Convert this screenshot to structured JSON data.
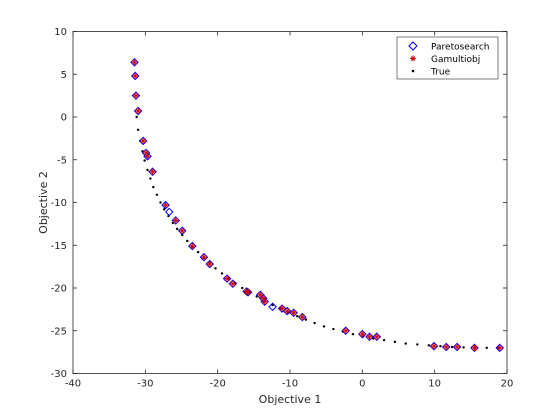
{
  "chart_data": {
    "type": "scatter",
    "title": "",
    "xlabel": "Objective 1",
    "ylabel": "Objective 2",
    "xlim": [
      -40,
      20
    ],
    "ylim": [
      -30,
      10
    ],
    "xticks": [
      "-40",
      "-30",
      "-20",
      "-10",
      "0",
      "10",
      "20"
    ],
    "yticks": [
      "-30",
      "-25",
      "-20",
      "-15",
      "-10",
      "-5",
      "0",
      "5",
      "10"
    ],
    "grid": false,
    "legend_position": "top-right",
    "series": [
      {
        "name": "Paretosearch",
        "marker": "diamond",
        "color": "#0000ff",
        "points": [
          [
            -31.5,
            6.4
          ],
          [
            -31.4,
            4.8
          ],
          [
            -31.3,
            2.5
          ],
          [
            -31.0,
            0.7
          ],
          [
            -30.3,
            -2.8
          ],
          [
            -29.9,
            -4.2
          ],
          [
            -29.7,
            -4.6
          ],
          [
            -29.0,
            -6.4
          ],
          [
            -27.2,
            -10.3
          ],
          [
            -26.7,
            -11.1
          ],
          [
            -25.8,
            -12.1
          ],
          [
            -24.9,
            -13.3
          ],
          [
            -23.5,
            -15.1
          ],
          [
            -21.9,
            -16.4
          ],
          [
            -21.1,
            -17.2
          ],
          [
            -18.7,
            -18.9
          ],
          [
            -17.9,
            -19.5
          ],
          [
            -16.0,
            -20.4
          ],
          [
            -15.8,
            -20.5
          ],
          [
            -14.1,
            -20.8
          ],
          [
            -13.7,
            -21.2
          ],
          [
            -13.5,
            -21.6
          ],
          [
            -12.4,
            -22.2
          ],
          [
            -11.1,
            -22.4
          ],
          [
            -10.4,
            -22.7
          ],
          [
            -9.5,
            -22.9
          ],
          [
            -8.3,
            -23.4
          ],
          [
            -2.3,
            -25.0
          ],
          [
            0.0,
            -25.4
          ],
          [
            1.0,
            -25.7
          ],
          [
            2.0,
            -25.7
          ],
          [
            9.9,
            -26.8
          ],
          [
            11.6,
            -26.9
          ],
          [
            13.1,
            -26.9
          ],
          [
            15.5,
            -27.0
          ],
          [
            19.0,
            -27.0
          ]
        ]
      },
      {
        "name": "Gamultiobj",
        "marker": "asterisk",
        "color": "#d00000",
        "points": [
          [
            -31.5,
            6.4
          ],
          [
            -31.4,
            4.8
          ],
          [
            -31.3,
            2.5
          ],
          [
            -31.0,
            0.7
          ],
          [
            -30.3,
            -2.8
          ],
          [
            -29.9,
            -4.2
          ],
          [
            -29.7,
            -4.6
          ],
          [
            -29.0,
            -6.4
          ],
          [
            -27.2,
            -10.3
          ],
          [
            -25.8,
            -12.1
          ],
          [
            -24.9,
            -13.3
          ],
          [
            -23.5,
            -15.1
          ],
          [
            -21.9,
            -16.4
          ],
          [
            -21.1,
            -17.2
          ],
          [
            -18.7,
            -18.9
          ],
          [
            -17.9,
            -19.5
          ],
          [
            -16.0,
            -20.4
          ],
          [
            -15.8,
            -20.5
          ],
          [
            -14.1,
            -20.8
          ],
          [
            -13.7,
            -21.2
          ],
          [
            -13.5,
            -21.6
          ],
          [
            -11.1,
            -22.4
          ],
          [
            -10.4,
            -22.7
          ],
          [
            -9.5,
            -22.9
          ],
          [
            -8.3,
            -23.4
          ],
          [
            -2.3,
            -25.0
          ],
          [
            0.0,
            -25.4
          ],
          [
            1.0,
            -25.7
          ],
          [
            2.0,
            -25.7
          ],
          [
            9.9,
            -26.8
          ],
          [
            11.6,
            -26.9
          ],
          [
            13.1,
            -26.9
          ],
          [
            15.5,
            -27.0
          ],
          [
            19.0,
            -27.0
          ]
        ]
      },
      {
        "name": "True",
        "marker": "dot",
        "color": "#000000",
        "points": [
          [
            -31.2,
            0.0
          ],
          [
            -31.0,
            -1.5
          ],
          [
            -30.7,
            -2.8
          ],
          [
            -30.4,
            -4.0
          ],
          [
            -30.1,
            -5.1
          ],
          [
            -29.7,
            -6.2
          ],
          [
            -29.3,
            -7.2
          ],
          [
            -28.9,
            -8.2
          ],
          [
            -28.4,
            -9.1
          ],
          [
            -27.9,
            -10.0
          ],
          [
            -27.4,
            -10.8
          ],
          [
            -26.8,
            -11.6
          ],
          [
            -26.2,
            -12.4
          ],
          [
            -25.6,
            -13.1
          ],
          [
            -24.9,
            -13.8
          ],
          [
            -24.2,
            -14.5
          ],
          [
            -23.5,
            -15.2
          ],
          [
            -22.7,
            -15.8
          ],
          [
            -21.9,
            -16.5
          ],
          [
            -21.1,
            -17.1
          ],
          [
            -20.3,
            -17.7
          ],
          [
            -19.4,
            -18.3
          ],
          [
            -18.5,
            -18.9
          ],
          [
            -17.6,
            -19.4
          ],
          [
            -16.6,
            -20.0
          ],
          [
            -15.6,
            -20.5
          ],
          [
            -14.6,
            -21.0
          ],
          [
            -13.5,
            -21.5
          ],
          [
            -12.4,
            -22.0
          ],
          [
            -11.3,
            -22.4
          ],
          [
            -10.2,
            -22.9
          ],
          [
            -9.0,
            -23.3
          ],
          [
            -7.8,
            -23.7
          ],
          [
            -6.6,
            -24.1
          ],
          [
            -5.3,
            -24.5
          ],
          [
            -4.0,
            -24.8
          ],
          [
            -2.7,
            -25.1
          ],
          [
            -1.3,
            -25.4
          ],
          [
            0.1,
            -25.7
          ],
          [
            1.5,
            -25.9
          ],
          [
            3.0,
            -26.1
          ],
          [
            4.5,
            -26.3
          ],
          [
            6.0,
            -26.5
          ],
          [
            7.6,
            -26.6
          ],
          [
            9.2,
            -26.7
          ],
          [
            10.8,
            -26.8
          ],
          [
            12.4,
            -26.9
          ],
          [
            14.0,
            -26.95
          ],
          [
            15.6,
            -27.0
          ],
          [
            17.2,
            -27.0
          ],
          [
            18.8,
            -27.0
          ]
        ]
      }
    ]
  }
}
